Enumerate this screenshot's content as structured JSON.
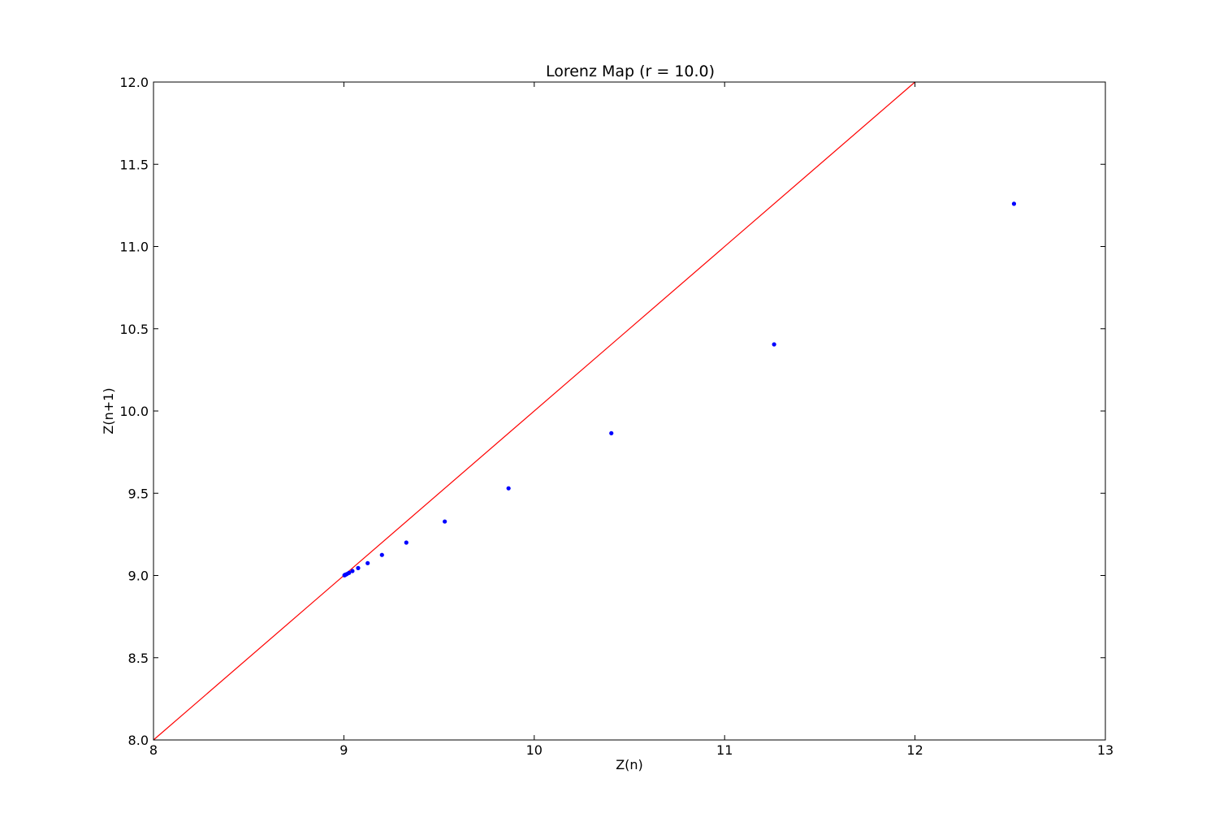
{
  "chart_data": {
    "type": "scatter",
    "title": "Lorenz Map (r = 10.0)",
    "xlabel": "Z(n)",
    "ylabel": "Z(n+1)",
    "xlim": [
      8,
      13
    ],
    "ylim": [
      8.0,
      12.0
    ],
    "x_ticks": [
      "8",
      "9",
      "10",
      "11",
      "12",
      "13"
    ],
    "y_ticks": [
      "8.0",
      "8.5",
      "9.0",
      "9.5",
      "10.0",
      "10.5",
      "11.0",
      "11.5",
      "12.0"
    ],
    "grid": false,
    "legend": "none",
    "reference_line": {
      "from": [
        8,
        8
      ],
      "to": [
        12,
        12
      ],
      "color": "#ff0000"
    },
    "series": [
      {
        "color": "#0000ff",
        "points": [
          [
            12.52,
            11.26
          ],
          [
            11.26,
            10.405
          ],
          [
            10.405,
            9.865
          ],
          [
            9.865,
            9.53
          ],
          [
            9.53,
            9.328
          ],
          [
            9.328,
            9.2
          ],
          [
            9.2,
            9.125
          ],
          [
            9.125,
            9.075
          ],
          [
            9.075,
            9.045
          ],
          [
            9.045,
            9.027
          ],
          [
            9.027,
            9.016
          ],
          [
            9.016,
            9.009
          ],
          [
            9.009,
            9.005
          ],
          [
            9.005,
            9.003
          ],
          [
            9.003,
            9.001
          ]
        ]
      }
    ]
  }
}
